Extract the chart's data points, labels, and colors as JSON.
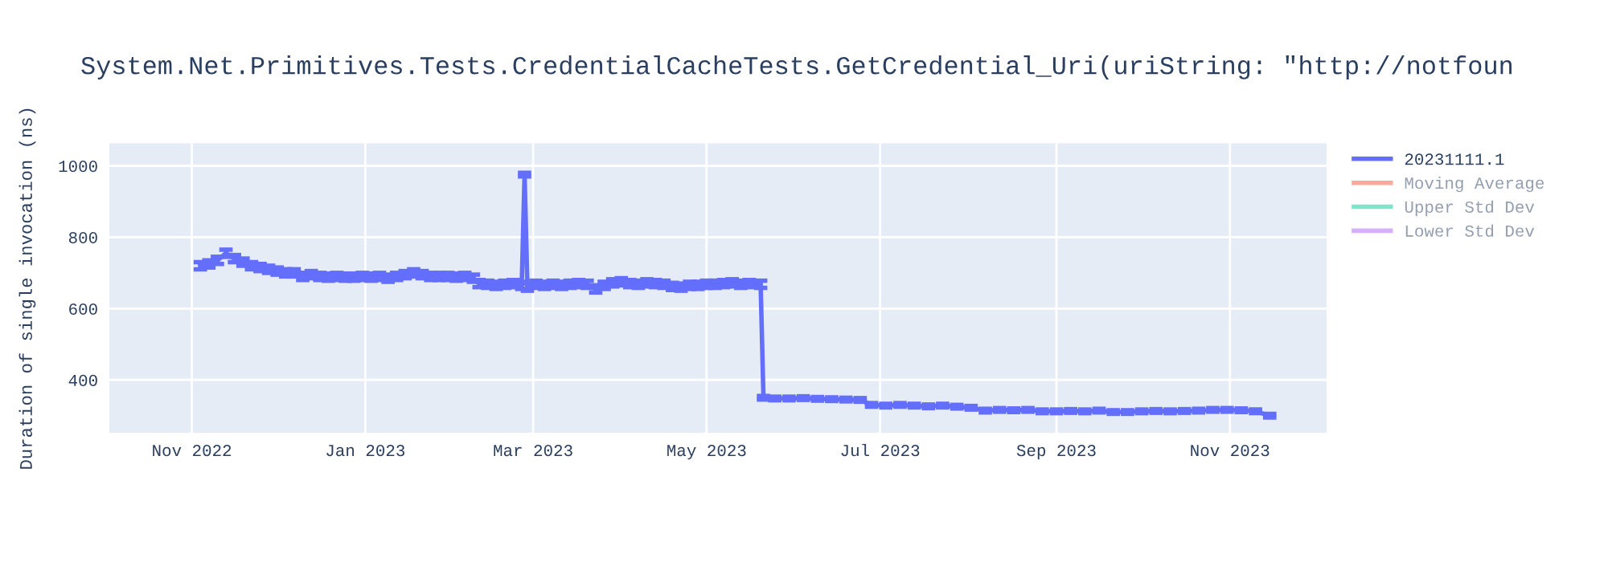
{
  "chart_data": {
    "type": "line",
    "title": "System.Net.Primitives.Tests.CredentialCacheTests.GetCredential_Uri(uriString: \"http://notfoun",
    "ylabel": "Duration of single invocation (ns)",
    "x": [
      "2022-11-04",
      "2022-11-07",
      "2022-11-10",
      "2022-11-13",
      "2022-11-16",
      "2022-11-19",
      "2022-11-22",
      "2022-11-25",
      "2022-11-28",
      "2022-12-01",
      "2022-12-04",
      "2022-12-07",
      "2022-12-10",
      "2022-12-13",
      "2022-12-16",
      "2022-12-19",
      "2022-12-22",
      "2022-12-25",
      "2022-12-28",
      "2022-12-31",
      "2023-01-03",
      "2023-01-06",
      "2023-01-09",
      "2023-01-12",
      "2023-01-15",
      "2023-01-18",
      "2023-01-21",
      "2023-01-24",
      "2023-01-27",
      "2023-01-30",
      "2023-02-02",
      "2023-02-05",
      "2023-02-08",
      "2023-02-10",
      "2023-02-13",
      "2023-02-16",
      "2023-02-19",
      "2023-02-22",
      "2023-02-25",
      "2023-02-26",
      "2023-02-27",
      "2023-03-02",
      "2023-03-05",
      "2023-03-08",
      "2023-03-11",
      "2023-03-14",
      "2023-03-17",
      "2023-03-20",
      "2023-03-23",
      "2023-03-26",
      "2023-03-29",
      "2023-04-01",
      "2023-04-04",
      "2023-04-07",
      "2023-04-10",
      "2023-04-13",
      "2023-04-16",
      "2023-04-19",
      "2023-04-22",
      "2023-04-25",
      "2023-04-28",
      "2023-05-01",
      "2023-05-04",
      "2023-05-07",
      "2023-05-10",
      "2023-05-13",
      "2023-05-16",
      "2023-05-20",
      "2023-05-21",
      "2023-05-25",
      "2023-05-30",
      "2023-06-04",
      "2023-06-09",
      "2023-06-14",
      "2023-06-19",
      "2023-06-24",
      "2023-06-28",
      "2023-07-03",
      "2023-07-08",
      "2023-07-13",
      "2023-07-18",
      "2023-07-23",
      "2023-07-28",
      "2023-08-02",
      "2023-08-07",
      "2023-08-12",
      "2023-08-17",
      "2023-08-22",
      "2023-08-27",
      "2023-09-01",
      "2023-09-06",
      "2023-09-11",
      "2023-09-16",
      "2023-09-21",
      "2023-09-26",
      "2023-10-01",
      "2023-10-06",
      "2023-10-11",
      "2023-10-16",
      "2023-10-21",
      "2023-10-26",
      "2023-10-31",
      "2023-11-05",
      "2023-11-10",
      "2023-11-15"
    ],
    "series": [
      {
        "name": "20231111.1",
        "color": "#636efa",
        "values": [
          720,
          725,
          735,
          755,
          740,
          730,
          720,
          715,
          710,
          705,
          700,
          700,
          690,
          695,
          690,
          688,
          690,
          688,
          688,
          690,
          688,
          690,
          685,
          690,
          695,
          700,
          695,
          690,
          690,
          690,
          688,
          690,
          685,
          670,
          668,
          665,
          668,
          670,
          665,
          975,
          660,
          668,
          665,
          668,
          665,
          668,
          670,
          668,
          655,
          665,
          672,
          675,
          670,
          668,
          672,
          670,
          668,
          662,
          660,
          665,
          665,
          668,
          668,
          670,
          672,
          668,
          670,
          668,
          350,
          348,
          348,
          349,
          347,
          346,
          345,
          344,
          330,
          328,
          330,
          328,
          326,
          328,
          325,
          322,
          314,
          316,
          315,
          316,
          312,
          312,
          313,
          312,
          314,
          310,
          310,
          312,
          313,
          312,
          313,
          314,
          316,
          316,
          315,
          312,
          300
        ],
        "errors": [
          10,
          10,
          10,
          10,
          10,
          10,
          10,
          10,
          10,
          10,
          10,
          10,
          10,
          10,
          10,
          10,
          10,
          10,
          10,
          10,
          10,
          10,
          10,
          10,
          10,
          10,
          10,
          10,
          10,
          10,
          10,
          10,
          10,
          10,
          10,
          10,
          10,
          10,
          10,
          5,
          10,
          10,
          10,
          10,
          10,
          10,
          10,
          10,
          10,
          10,
          10,
          10,
          10,
          10,
          10,
          10,
          10,
          10,
          10,
          10,
          10,
          10,
          10,
          10,
          10,
          10,
          10,
          10,
          5,
          5,
          5,
          5,
          5,
          5,
          5,
          5,
          5,
          5,
          5,
          5,
          5,
          5,
          5,
          5,
          5,
          5,
          5,
          5,
          5,
          5,
          5,
          5,
          5,
          5,
          5,
          5,
          5,
          5,
          5,
          5,
          5,
          5,
          5,
          5,
          5
        ]
      },
      {
        "name": "Moving Average",
        "color": "#ef553b",
        "values": [
          null,
          null,
          null,
          null,
          null,
          null,
          null,
          null,
          null,
          null,
          null,
          null,
          null,
          null,
          null,
          null,
          null,
          null,
          null,
          null,
          null,
          null,
          null,
          null,
          null,
          null,
          null,
          null,
          null,
          null,
          null,
          null,
          null,
          null,
          null,
          null,
          null,
          null,
          null,
          null,
          null,
          null,
          null,
          null,
          null,
          null,
          null,
          null,
          null,
          null,
          null,
          null,
          null,
          null,
          null,
          null,
          null,
          null,
          null,
          null,
          null,
          null,
          null,
          null,
          null,
          null,
          null,
          null,
          null,
          null,
          null,
          null,
          null,
          null,
          null,
          null,
          null,
          null,
          null,
          null,
          null,
          null,
          null,
          null,
          null,
          null,
          null,
          null,
          null,
          null,
          null,
          null,
          null,
          null,
          null,
          null,
          null,
          null,
          null,
          null,
          null,
          null,
          null,
          null,
          null
        ]
      },
      {
        "name": "Upper Std Dev",
        "color": "#00cc96",
        "values": [
          null,
          null,
          null,
          null,
          null,
          null,
          null,
          null,
          null,
          null,
          null,
          null,
          null,
          null,
          null,
          null,
          null,
          null,
          null,
          null,
          null,
          null,
          null,
          null,
          null,
          null,
          null,
          null,
          null,
          null,
          null,
          null,
          null,
          null,
          null,
          null,
          null,
          null,
          null,
          null,
          null,
          null,
          null,
          null,
          null,
          null,
          null,
          null,
          null,
          null,
          null,
          null,
          null,
          null,
          null,
          null,
          null,
          null,
          null,
          null,
          null,
          null,
          null,
          null,
          null,
          null,
          null,
          null,
          null,
          null,
          null,
          null,
          null,
          null,
          null,
          null,
          null,
          null,
          null,
          null,
          null,
          null,
          null,
          null,
          null,
          null,
          null,
          null,
          null,
          null,
          null,
          null,
          null,
          null,
          null,
          null,
          null,
          null,
          null,
          null,
          null,
          null,
          null,
          null,
          null
        ]
      },
      {
        "name": "Lower Std Dev",
        "color": "#ab63fa",
        "values": [
          null,
          null,
          null,
          null,
          null,
          null,
          null,
          null,
          null,
          null,
          null,
          null,
          null,
          null,
          null,
          null,
          null,
          null,
          null,
          null,
          null,
          null,
          null,
          null,
          null,
          null,
          null,
          null,
          null,
          null,
          null,
          null,
          null,
          null,
          null,
          null,
          null,
          null,
          null,
          null,
          null,
          null,
          null,
          null,
          null,
          null,
          null,
          null,
          null,
          null,
          null,
          null,
          null,
          null,
          null,
          null,
          null,
          null,
          null,
          null,
          null,
          null,
          null,
          null,
          null,
          null,
          null,
          null,
          null,
          null,
          null,
          null,
          null,
          null,
          null,
          null,
          null,
          null,
          null,
          null,
          null,
          null,
          null,
          null,
          null,
          null,
          null,
          null,
          null,
          null,
          null,
          null,
          null,
          null,
          null,
          null,
          null,
          null,
          null,
          null,
          null,
          null,
          null,
          null,
          null
        ]
      }
    ],
    "xlim": [
      "2022-10-03",
      "2023-12-05"
    ],
    "xticks": [
      {
        "value": "2022-11-01",
        "label": "Nov 2022"
      },
      {
        "value": "2023-01-01",
        "label": "Jan 2023"
      },
      {
        "value": "2023-03-01",
        "label": "Mar 2023"
      },
      {
        "value": "2023-05-01",
        "label": "May 2023"
      },
      {
        "value": "2023-07-01",
        "label": "Jul 2023"
      },
      {
        "value": "2023-09-01",
        "label": "Sep 2023"
      },
      {
        "value": "2023-11-01",
        "label": "Nov 2023"
      }
    ],
    "ylim": [
      252,
      1063
    ],
    "yticks": [
      400,
      600,
      800,
      1000
    ],
    "grid": true,
    "legend": "top right",
    "line_style": "solid",
    "marker": "none"
  }
}
